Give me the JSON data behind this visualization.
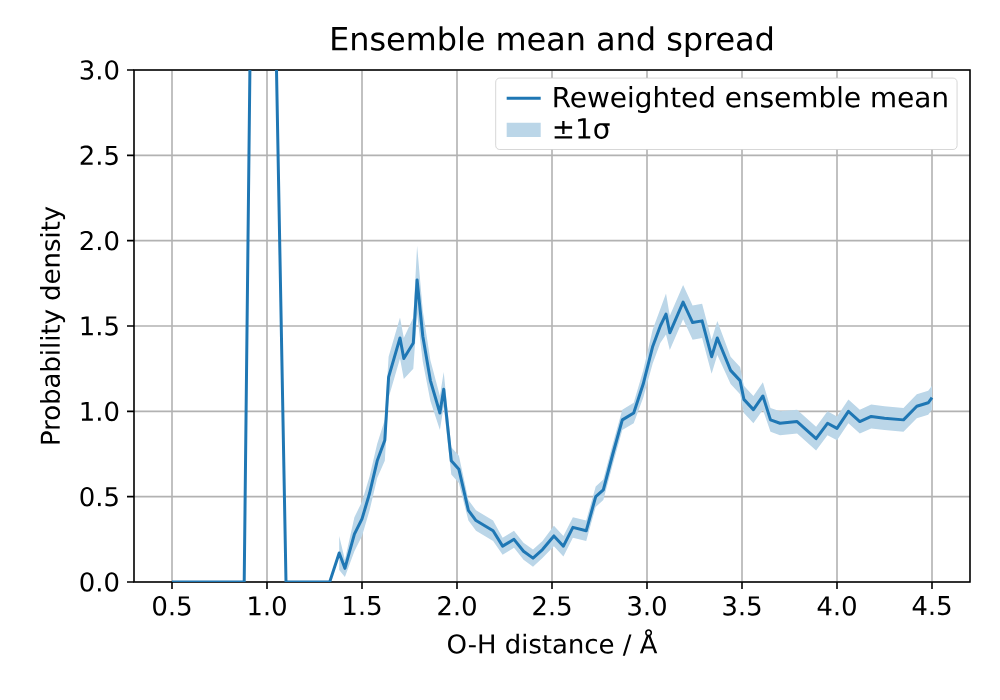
{
  "chart_data": {
    "type": "line",
    "title": "Ensemble mean and spread",
    "xlabel": "O-H distance / Å",
    "ylabel": "Probability density",
    "x": [
      0.5,
      0.88,
      0.91,
      0.98,
      1.05,
      1.1,
      1.33,
      1.38,
      1.41,
      1.46,
      1.5,
      1.54,
      1.58,
      1.62,
      1.64,
      1.7,
      1.72,
      1.77,
      1.79,
      1.82,
      1.86,
      1.91,
      1.93,
      1.97,
      2.01,
      2.06,
      2.1,
      2.19,
      2.24,
      2.3,
      2.35,
      2.4,
      2.45,
      2.51,
      2.56,
      2.61,
      2.68,
      2.73,
      2.77,
      2.82,
      2.87,
      2.93,
      2.98,
      3.03,
      3.07,
      3.1,
      3.12,
      3.19,
      3.24,
      3.29,
      3.34,
      3.37,
      3.44,
      3.49,
      3.51,
      3.56,
      3.61,
      3.65,
      3.7,
      3.79,
      3.89,
      3.95,
      4.0,
      4.06,
      4.12,
      4.18,
      4.25,
      4.35,
      4.42,
      4.48,
      4.5
    ],
    "series": [
      {
        "name": "Reweighted ensemble mean",
        "color": "#1f77b4",
        "values": [
          0,
          0,
          3.0,
          null,
          3.0,
          0,
          0,
          0.17,
          0.08,
          0.28,
          0.37,
          0.52,
          0.71,
          0.83,
          1.2,
          1.43,
          1.31,
          1.4,
          1.77,
          1.44,
          1.18,
          0.99,
          1.13,
          0.71,
          0.66,
          0.42,
          0.36,
          0.3,
          0.21,
          0.25,
          0.18,
          0.14,
          0.19,
          0.27,
          0.21,
          0.32,
          0.3,
          0.5,
          0.54,
          0.75,
          0.95,
          0.99,
          1.16,
          1.38,
          1.5,
          1.57,
          1.46,
          1.64,
          1.52,
          1.53,
          1.32,
          1.43,
          1.24,
          1.18,
          1.07,
          1.01,
          1.09,
          0.95,
          0.93,
          0.94,
          0.84,
          0.93,
          0.9,
          1.0,
          0.94,
          0.97,
          0.96,
          0.95,
          1.03,
          1.05,
          1.08
        ],
        "lower": [
          null,
          null,
          null,
          null,
          null,
          null,
          null,
          0.07,
          0.03,
          0.18,
          0.27,
          0.42,
          0.61,
          0.71,
          1.08,
          1.31,
          1.19,
          1.25,
          1.57,
          1.29,
          1.06,
          0.89,
          1.03,
          0.63,
          0.58,
          0.36,
          0.3,
          0.24,
          0.16,
          0.2,
          0.13,
          0.09,
          0.14,
          0.21,
          0.15,
          0.26,
          0.24,
          0.44,
          0.48,
          0.69,
          0.89,
          0.93,
          1.08,
          1.28,
          1.4,
          1.45,
          1.36,
          1.54,
          1.42,
          1.43,
          1.22,
          1.33,
          1.16,
          1.1,
          0.99,
          0.93,
          1.01,
          0.88,
          0.86,
          0.87,
          0.77,
          0.86,
          0.83,
          0.93,
          0.87,
          0.9,
          0.89,
          0.88,
          0.96,
          0.98,
          1.01
        ],
        "upper": [
          null,
          null,
          null,
          null,
          null,
          null,
          null,
          0.27,
          0.13,
          0.38,
          0.47,
          0.62,
          0.81,
          0.95,
          1.32,
          1.55,
          1.43,
          1.55,
          1.97,
          1.59,
          1.3,
          1.09,
          1.23,
          0.79,
          0.74,
          0.48,
          0.42,
          0.36,
          0.26,
          0.3,
          0.23,
          0.19,
          0.24,
          0.33,
          0.27,
          0.38,
          0.36,
          0.56,
          0.6,
          0.81,
          1.01,
          1.05,
          1.24,
          1.48,
          1.6,
          1.69,
          1.56,
          1.74,
          1.62,
          1.63,
          1.42,
          1.53,
          1.32,
          1.26,
          1.15,
          1.09,
          1.17,
          1.02,
          1.0,
          1.01,
          0.91,
          1.0,
          0.97,
          1.07,
          1.01,
          1.04,
          1.03,
          1.02,
          1.1,
          1.12,
          1.15
        ]
      }
    ],
    "annotations": [
      "±1σ"
    ],
    "xlim": [
      0.3,
      4.7
    ],
    "ylim": [
      0,
      3
    ],
    "xticks": [
      0.5,
      {
        "value": 1,
        "label": "1.0"
      },
      1.5,
      {
        "value": 2,
        "label": "2.0"
      },
      2.5,
      {
        "value": 3,
        "label": "3.0"
      },
      3.5,
      {
        "value": 4,
        "label": "4.0"
      },
      4.5
    ],
    "yticks": [
      {
        "value": 0,
        "label": "0.0"
      },
      0.5,
      {
        "value": 1,
        "label": "1.0"
      },
      1.5,
      {
        "value": 2,
        "label": "2.0"
      },
      2.5,
      {
        "value": 3,
        "label": "3.0"
      }
    ],
    "grid": true,
    "legend": "top right"
  }
}
